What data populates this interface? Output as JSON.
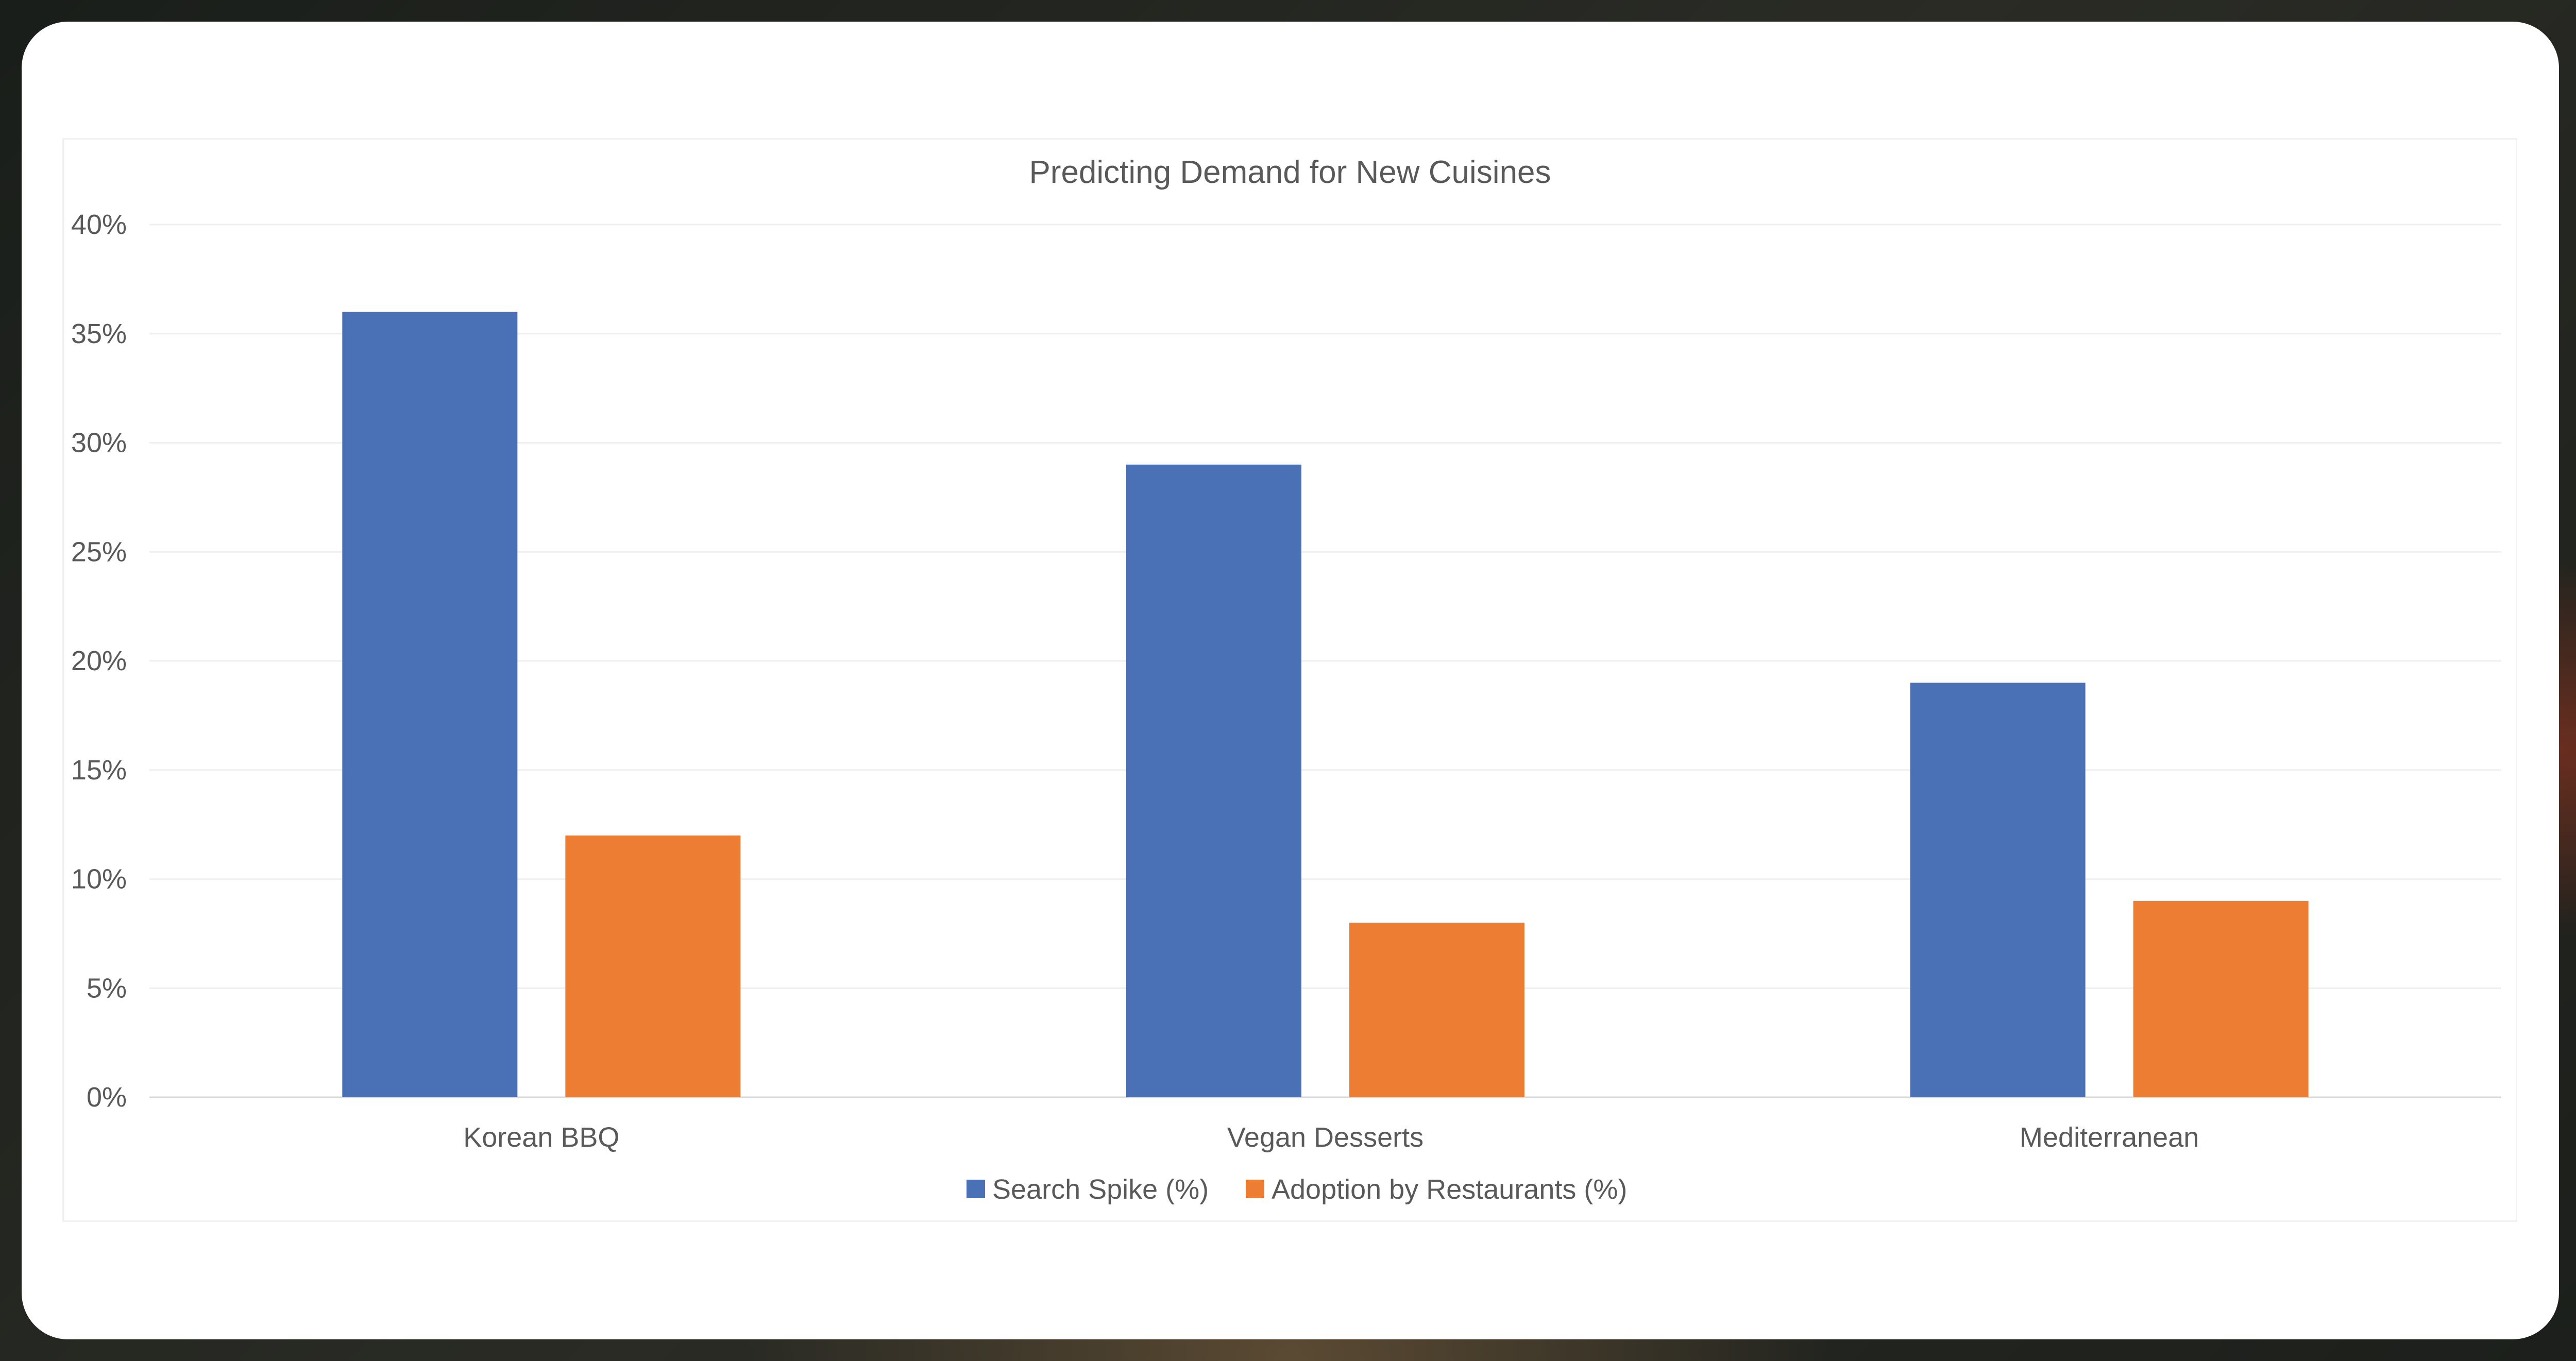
{
  "chart_data": {
    "type": "bar",
    "title": "Predicting Demand for New Cuisines",
    "categories": [
      "Korean BBQ",
      "Vegan Desserts",
      "Mediterranean"
    ],
    "series": [
      {
        "name": "Search Spike (%)",
        "values": [
          36,
          29,
          19
        ],
        "color": "#4a70b5"
      },
      {
        "name": "Adoption by Restaurants (%)",
        "values": [
          12,
          8,
          9
        ],
        "color": "#ee7d34"
      }
    ],
    "y_ticks": [
      "0%",
      "5%",
      "10%",
      "15%",
      "20%",
      "25%",
      "30%",
      "35%",
      "40%"
    ],
    "ylim": [
      0,
      40
    ],
    "grid": true,
    "legend_position": "bottom"
  }
}
